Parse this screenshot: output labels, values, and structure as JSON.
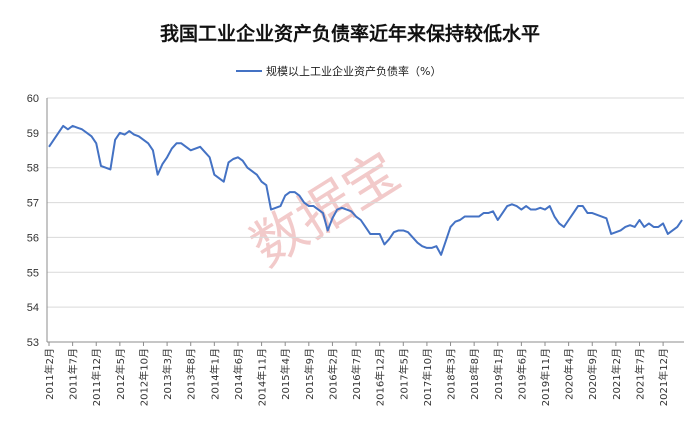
{
  "chart_data": {
    "type": "line",
    "title": "我国工业企业资产负债率近年来保持较低水平",
    "watermark": "数据宝",
    "ylim": [
      53,
      60
    ],
    "yticks": [
      "53",
      "54",
      "55",
      "56",
      "57",
      "58",
      "59",
      "60"
    ],
    "grid": true,
    "legend_position": "top-center",
    "line_color": "#4472c4",
    "series": [
      {
        "name": "规模以上工业企业资产负债率（%）",
        "values": [
          58.6,
          58.8,
          59.0,
          59.2,
          59.1,
          59.2,
          59.15,
          59.1,
          59.0,
          58.9,
          58.7,
          58.05,
          58.0,
          57.95,
          58.8,
          59.0,
          58.95,
          59.05,
          58.95,
          58.9,
          58.8,
          58.7,
          58.5,
          57.8,
          58.1,
          58.3,
          58.55,
          58.7,
          58.7,
          58.6,
          58.5,
          58.55,
          58.6,
          58.45,
          58.3,
          57.8,
          57.7,
          57.6,
          58.15,
          58.25,
          58.3,
          58.2,
          58.0,
          57.9,
          57.8,
          57.6,
          57.5,
          56.8,
          56.85,
          56.9,
          57.2,
          57.3,
          57.3,
          57.2,
          57.0,
          56.9,
          56.9,
          56.8,
          56.7,
          56.2,
          56.55,
          56.8,
          56.85,
          56.8,
          56.75,
          56.6,
          56.5,
          56.3,
          56.1,
          56.1,
          56.1,
          55.8,
          55.95,
          56.15,
          56.2,
          56.2,
          56.15,
          56.0,
          55.85,
          55.75,
          55.7,
          55.7,
          55.75,
          55.5,
          55.9,
          56.3,
          56.45,
          56.5,
          56.6,
          56.6,
          56.6,
          56.6,
          56.7,
          56.7,
          56.75,
          56.5,
          56.7,
          56.9,
          56.95,
          56.9,
          56.8,
          56.9,
          56.8,
          56.8,
          56.85,
          56.8,
          56.9,
          56.6,
          56.4,
          56.3,
          56.5,
          56.7,
          56.9,
          56.9,
          56.7,
          56.7,
          56.65,
          56.6,
          56.55,
          56.1,
          56.15,
          56.2,
          56.3,
          56.35,
          56.3,
          56.5,
          56.3,
          56.4,
          56.3,
          56.3,
          56.4,
          56.1,
          56.2,
          56.3,
          56.5
        ]
      }
    ],
    "x_tick_labels": [
      "2011年2月",
      "2011年7月",
      "2011年12月",
      "2012年5月",
      "2012年10月",
      "2013年3月",
      "2013年8月",
      "2014年1月",
      "2014年6月",
      "2014年11月",
      "2015年4月",
      "2015年9月",
      "2016年2月",
      "2016年7月",
      "2016年12月",
      "2017年5月",
      "2017年10月",
      "2018年3月",
      "2018年8月",
      "2019年1月",
      "2019年6月",
      "2019年11月",
      "2020年4月",
      "2020年9月",
      "2021年2月",
      "2021年7月",
      "2021年12月"
    ],
    "x_tick_every_months": 5
  }
}
